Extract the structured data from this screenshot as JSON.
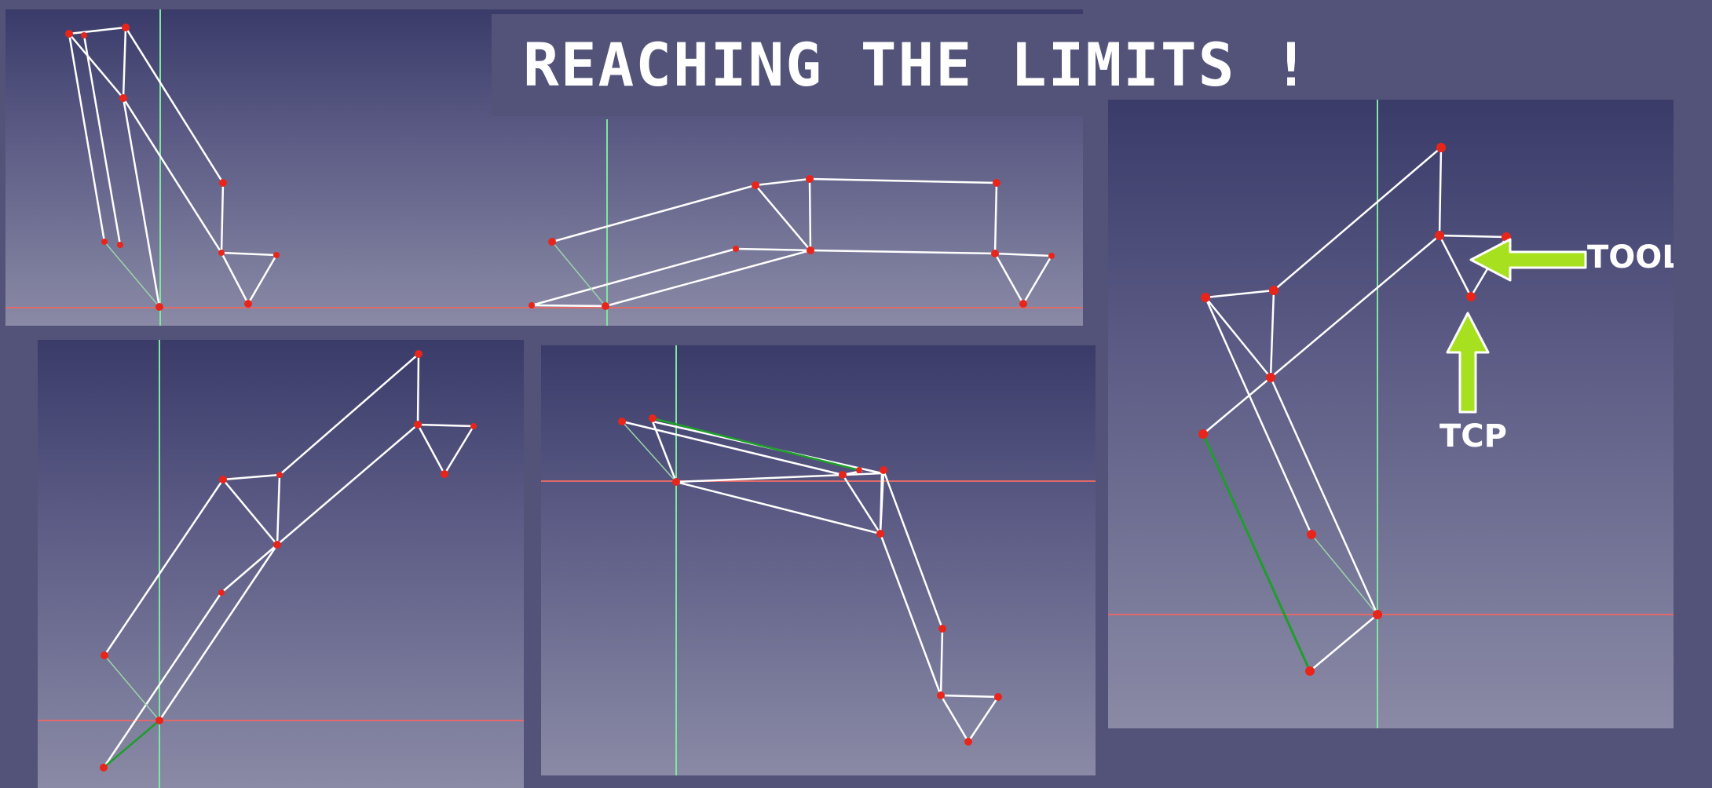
{
  "title": "REACHING THE LIMITS !",
  "labels": {
    "tool": "TOOL",
    "tcp": "TCP"
  },
  "colors": {
    "background": "#535379",
    "link": "#ffffff",
    "joint": "#e8251b",
    "axis_vertical": "#7ee8a0",
    "axis_horizontal": "#e06a6a",
    "highlight": "#1e9e2a",
    "arrow": "#a6e01e"
  },
  "views": [
    {
      "name": "top-left-view"
    },
    {
      "name": "top-middle-view"
    },
    {
      "name": "bottom-left-view"
    },
    {
      "name": "bottom-middle-view"
    },
    {
      "name": "right-view"
    }
  ],
  "icons": {
    "tool_arrow": "arrow-left-icon",
    "tcp_arrow": "arrow-up-icon"
  }
}
